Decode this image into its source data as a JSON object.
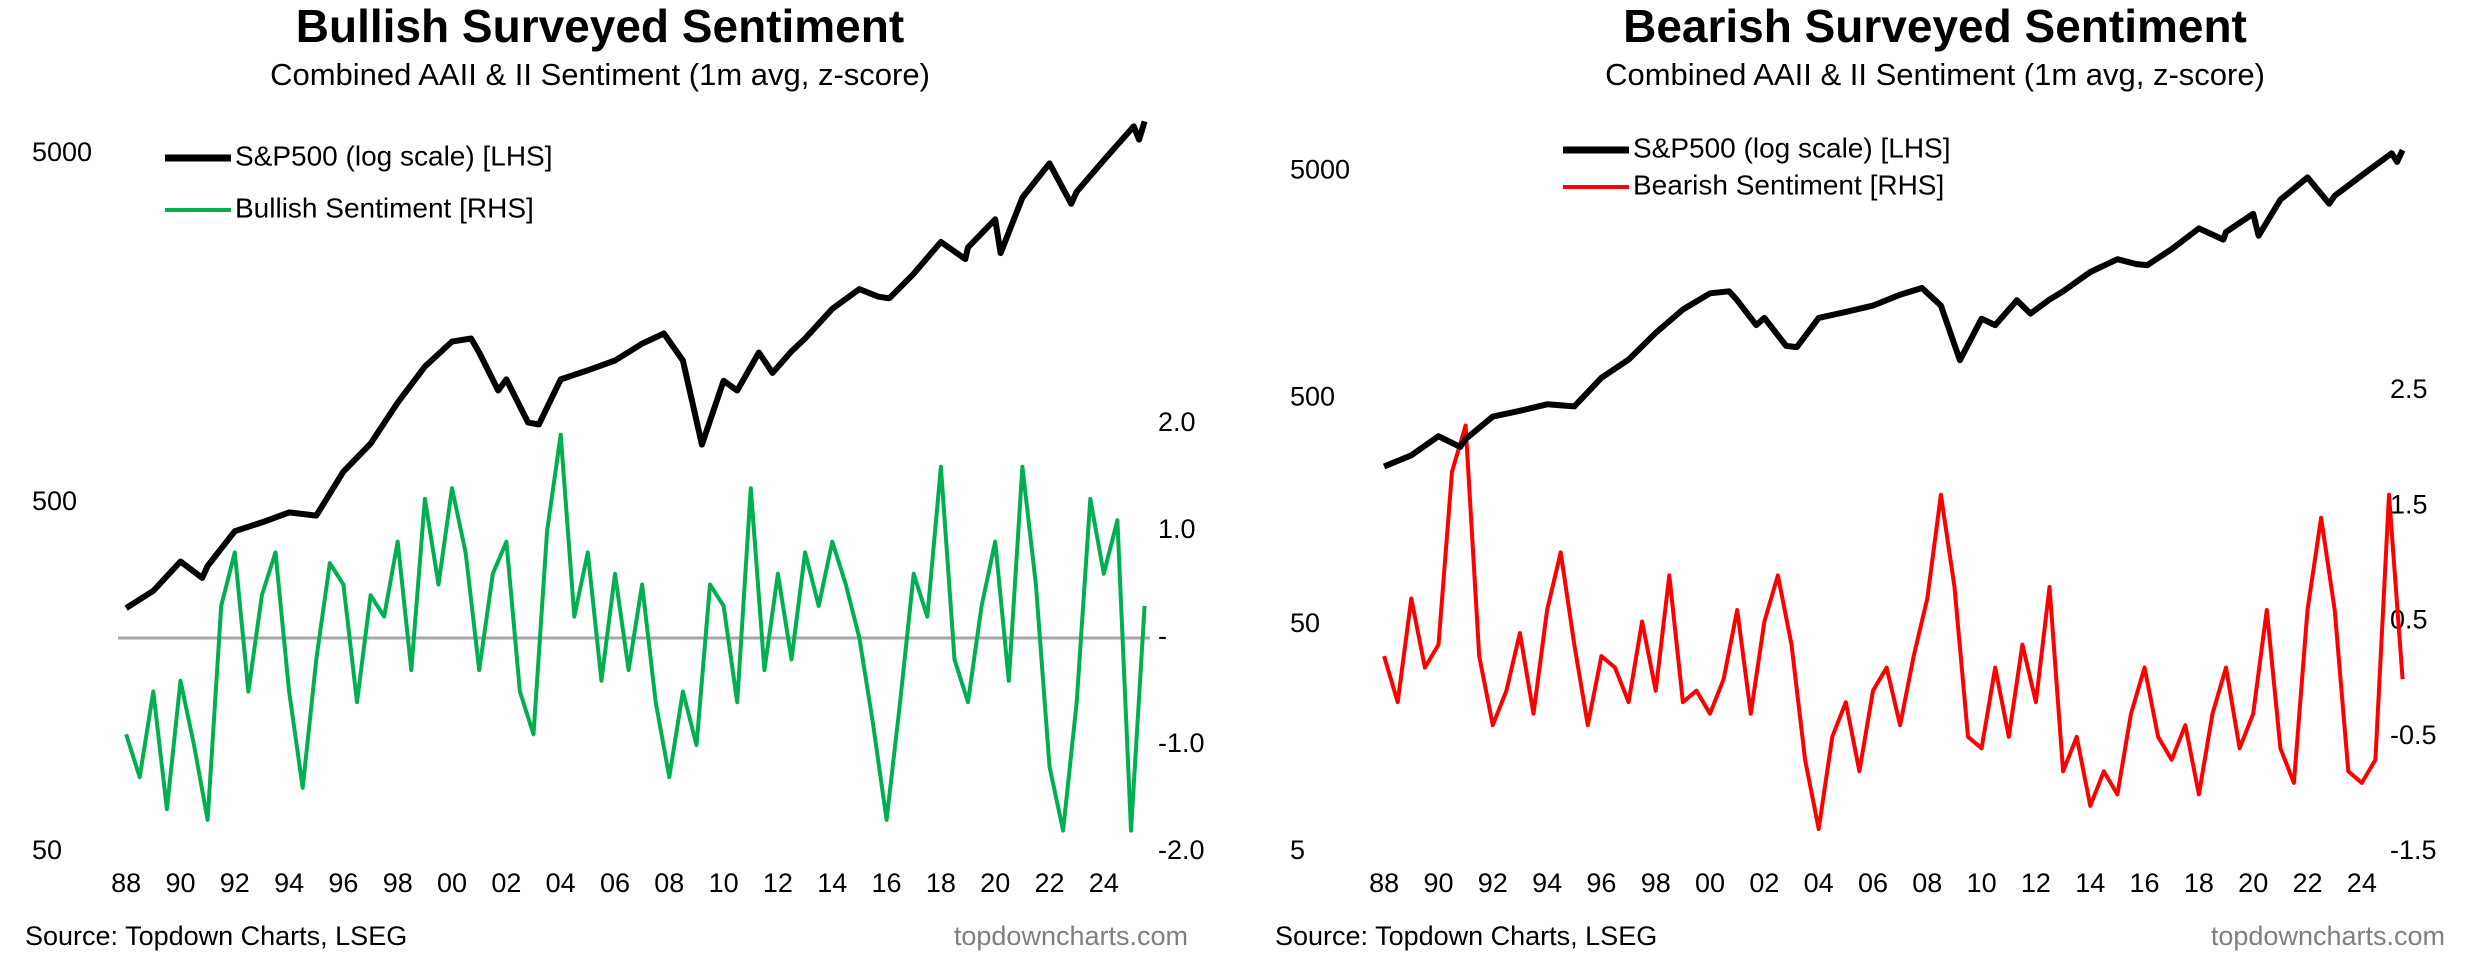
{
  "chart_data": [
    {
      "type": "line",
      "title": "Bullish Surveyed Sentiment",
      "subtitle": "Combined AAII & II Sentiment (1m avg, z-score)",
      "source": "Source: Topdown Charts, LSEG",
      "watermark": "topdowncharts.com",
      "log_y": true,
      "xlim": [
        1987.7,
        2025.7
      ],
      "xticks": [
        {
          "value": 1988,
          "label": "88"
        },
        {
          "value": 1990,
          "label": "90"
        },
        {
          "value": 1992,
          "label": "92"
        },
        {
          "value": 1994,
          "label": "94"
        },
        {
          "value": 1996,
          "label": "96"
        },
        {
          "value": 1998,
          "label": "98"
        },
        {
          "value": 2000,
          "label": "00"
        },
        {
          "value": 2002,
          "label": "02"
        },
        {
          "value": 2004,
          "label": "04"
        },
        {
          "value": 2006,
          "label": "06"
        },
        {
          "value": 2008,
          "label": "08"
        },
        {
          "value": 2010,
          "label": "10"
        },
        {
          "value": 2012,
          "label": "12"
        },
        {
          "value": 2014,
          "label": "14"
        },
        {
          "value": 2016,
          "label": "16"
        },
        {
          "value": 2018,
          "label": "18"
        },
        {
          "value": 2020,
          "label": "20"
        },
        {
          "value": 2022,
          "label": "22"
        },
        {
          "value": 2024,
          "label": "24"
        }
      ],
      "ylim": [
        50,
        7000
      ],
      "yticks": [
        50,
        500,
        5000
      ],
      "y2lim": [
        -2,
        5
      ],
      "y2ticks": [
        {
          "value": 2,
          "label": "2.0"
        },
        {
          "value": 1,
          "label": "1.0"
        },
        {
          "value": 0,
          "label": "-"
        },
        {
          "value": -1,
          "label": "-1.0"
        },
        {
          "value": -2,
          "label": "-2.0"
        }
      ],
      "reference_line": {
        "axis": "y2",
        "value": 0,
        "color": "#a6a6a6"
      },
      "series": [
        {
          "name": "S&P500 (log scale) [LHS]",
          "color": "#000000",
          "x": [
            1988,
            1989,
            1990,
            1990.8,
            1991,
            1992,
            1993,
            1994,
            1995,
            1996,
            1997,
            1998,
            1999,
            2000,
            2000.7,
            2001,
            2001.7,
            2002,
            2002.8,
            2003.2,
            2004,
            2005,
            2006,
            2007,
            2007.8,
            2008.5,
            2009.2,
            2010,
            2010.5,
            2011.3,
            2011.8,
            2012.5,
            2013,
            2014,
            2015,
            2015.7,
            2016.1,
            2017,
            2018,
            2018.9,
            2019,
            2020,
            2020.2,
            2021,
            2022,
            2022.8,
            2023,
            2024,
            2025.1,
            2025.3,
            2025.5
          ],
          "values": [
            250,
            280,
            340,
            305,
            330,
            415,
            440,
            470,
            460,
            615,
            740,
            970,
            1230,
            1450,
            1480,
            1350,
            1050,
            1130,
            850,
            840,
            1130,
            1200,
            1280,
            1430,
            1530,
            1280,
            735,
            1120,
            1050,
            1350,
            1180,
            1360,
            1480,
            1800,
            2050,
            1950,
            1930,
            2270,
            2800,
            2500,
            2700,
            3250,
            2600,
            3750,
            4700,
            3600,
            3900,
            4800,
            6000,
            5500,
            6200
          ]
        },
        {
          "name": "Bullish Sentiment [RHS]",
          "color": "#00b050",
          "axis": "y2",
          "x": [
            1988,
            1988.5,
            1989,
            1989.5,
            1990,
            1990.5,
            1991,
            1991.5,
            1992,
            1992.5,
            1993,
            1993.5,
            1994,
            1994.5,
            1995,
            1995.5,
            1996,
            1996.5,
            1997,
            1997.5,
            1998,
            1998.5,
            1999,
            1999.5,
            2000,
            2000.5,
            2001,
            2001.5,
            2002,
            2002.5,
            2003,
            2003.5,
            2004,
            2004.5,
            2005,
            2005.5,
            2006,
            2006.5,
            2007,
            2007.5,
            2008,
            2008.5,
            2009,
            2009.5,
            2010,
            2010.5,
            2011,
            2011.5,
            2012,
            2012.5,
            2013,
            2013.5,
            2014,
            2014.5,
            2015,
            2015.5,
            2016,
            2016.5,
            2017,
            2017.5,
            2018,
            2018.5,
            2019,
            2019.5,
            2020,
            2020.5,
            2021,
            2021.5,
            2022,
            2022.5,
            2023,
            2023.5,
            2024,
            2024.5,
            2025,
            2025.5
          ],
          "values": [
            -0.9,
            -1.3,
            -0.5,
            -1.6,
            -0.4,
            -1.0,
            -1.7,
            0.3,
            0.8,
            -0.5,
            0.4,
            0.8,
            -0.5,
            -1.4,
            -0.2,
            0.7,
            0.5,
            -0.6,
            0.4,
            0.2,
            0.9,
            -0.3,
            1.3,
            0.5,
            1.4,
            0.8,
            -0.3,
            0.6,
            0.9,
            -0.5,
            -0.9,
            1.0,
            1.9,
            0.2,
            0.8,
            -0.4,
            0.6,
            -0.3,
            0.5,
            -0.6,
            -1.3,
            -0.5,
            -1.0,
            0.5,
            0.3,
            -0.6,
            1.4,
            -0.3,
            0.6,
            -0.2,
            0.8,
            0.3,
            0.9,
            0.5,
            0.0,
            -0.8,
            -1.7,
            -0.6,
            0.6,
            0.2,
            1.6,
            -0.2,
            -0.6,
            0.3,
            0.9,
            -0.4,
            1.6,
            0.5,
            -1.2,
            -1.8,
            -0.6,
            1.3,
            0.6,
            1.1,
            -1.8,
            0.3
          ]
        }
      ]
    },
    {
      "type": "line",
      "title": "Bearish Surveyed Sentiment",
      "subtitle": "Combined AAII & II Sentiment (1m avg, z-score)",
      "source": "Source: Topdown Charts, LSEG",
      "watermark": "topdowncharts.com",
      "log_y": true,
      "xlim": [
        1987.7,
        2025.7
      ],
      "xticks": [
        {
          "value": 1988,
          "label": "88"
        },
        {
          "value": 1990,
          "label": "90"
        },
        {
          "value": 1992,
          "label": "92"
        },
        {
          "value": 1994,
          "label": "94"
        },
        {
          "value": 1996,
          "label": "96"
        },
        {
          "value": 1998,
          "label": "98"
        },
        {
          "value": 2000,
          "label": "00"
        },
        {
          "value": 2002,
          "label": "02"
        },
        {
          "value": 2004,
          "label": "04"
        },
        {
          "value": 2006,
          "label": "06"
        },
        {
          "value": 2008,
          "label": "08"
        },
        {
          "value": 2010,
          "label": "10"
        },
        {
          "value": 2012,
          "label": "12"
        },
        {
          "value": 2014,
          "label": "14"
        },
        {
          "value": 2016,
          "label": "16"
        },
        {
          "value": 2018,
          "label": "18"
        },
        {
          "value": 2020,
          "label": "20"
        },
        {
          "value": 2022,
          "label": "22"
        },
        {
          "value": 2024,
          "label": "24"
        }
      ],
      "ylim": [
        5,
        10000
      ],
      "yticks": [
        5,
        50,
        500,
        5000
      ],
      "y2lim": [
        -1.5,
        5
      ],
      "y2ticks": [
        2.5,
        1.5,
        0.5,
        -0.5,
        -1.5
      ],
      "series": [
        {
          "name": "S&P500 (log scale) [LHS]",
          "color": "#000000",
          "x": [
            1988,
            1989,
            1990,
            1990.8,
            1991,
            1992,
            1993,
            1994,
            1995,
            1996,
            1997,
            1998,
            1999,
            2000,
            2000.7,
            2001,
            2001.7,
            2002,
            2002.8,
            2003.2,
            2004,
            2005,
            2006,
            2007,
            2007.8,
            2008.5,
            2009.2,
            2010,
            2010.5,
            2011.3,
            2011.8,
            2012.5,
            2013,
            2014,
            2015,
            2015.7,
            2016.1,
            2017,
            2018,
            2018.9,
            2019,
            2020,
            2020.2,
            2021,
            2022,
            2022.8,
            2023,
            2024,
            2025.1,
            2025.3,
            2025.5
          ],
          "values": [
            250,
            280,
            340,
            305,
            330,
            415,
            440,
            470,
            460,
            615,
            740,
            970,
            1230,
            1450,
            1480,
            1350,
            1050,
            1130,
            850,
            840,
            1130,
            1200,
            1280,
            1430,
            1530,
            1280,
            735,
            1120,
            1050,
            1350,
            1180,
            1360,
            1480,
            1800,
            2050,
            1950,
            1930,
            2270,
            2800,
            2500,
            2700,
            3250,
            2600,
            3750,
            4700,
            3600,
            3900,
            4800,
            6000,
            5500,
            6200
          ]
        },
        {
          "name": "Bearish Sentiment [RHS]",
          "color": "#ff0000",
          "axis": "y2",
          "x": [
            1988,
            1988.5,
            1989,
            1989.5,
            1990,
            1990.5,
            1991,
            1991.5,
            1992,
            1992.5,
            1993,
            1993.5,
            1994,
            1994.5,
            1995,
            1995.5,
            1996,
            1996.5,
            1997,
            1997.5,
            1998,
            1998.5,
            1999,
            1999.5,
            2000,
            2000.5,
            2001,
            2001.5,
            2002,
            2002.5,
            2003,
            2003.5,
            2004,
            2004.5,
            2005,
            2005.5,
            2006,
            2006.5,
            2007,
            2007.5,
            2008,
            2008.5,
            2009,
            2009.5,
            2010,
            2010.5,
            2011,
            2011.5,
            2012,
            2012.5,
            2013,
            2013.5,
            2014,
            2014.5,
            2015,
            2015.5,
            2016,
            2016.5,
            2017,
            2017.5,
            2018,
            2018.5,
            2019,
            2019.5,
            2020,
            2020.5,
            2021,
            2021.5,
            2022,
            2022.5,
            2023,
            2023.5,
            2024,
            2024.5,
            2025,
            2025.5
          ],
          "values": [
            0.2,
            -0.2,
            0.7,
            0.1,
            0.3,
            1.8,
            2.2,
            0.2,
            -0.4,
            -0.1,
            0.4,
            -0.3,
            0.6,
            1.1,
            0.3,
            -0.4,
            0.2,
            0.1,
            -0.2,
            0.5,
            -0.1,
            0.9,
            -0.2,
            -0.1,
            -0.3,
            0.0,
            0.6,
            -0.3,
            0.5,
            0.9,
            0.3,
            -0.7,
            -1.3,
            -0.5,
            -0.2,
            -0.8,
            -0.1,
            0.1,
            -0.4,
            0.2,
            0.7,
            1.6,
            0.8,
            -0.5,
            -0.6,
            0.1,
            -0.5,
            0.3,
            -0.2,
            0.8,
            -0.8,
            -0.5,
            -1.1,
            -0.8,
            -1.0,
            -0.3,
            0.1,
            -0.5,
            -0.7,
            -0.4,
            -1.0,
            -0.3,
            0.1,
            -0.6,
            -0.3,
            0.6,
            -0.6,
            -0.9,
            0.6,
            1.4,
            0.6,
            -0.8,
            -0.9,
            -0.7,
            1.6,
            0.0
          ]
        }
      ]
    }
  ]
}
